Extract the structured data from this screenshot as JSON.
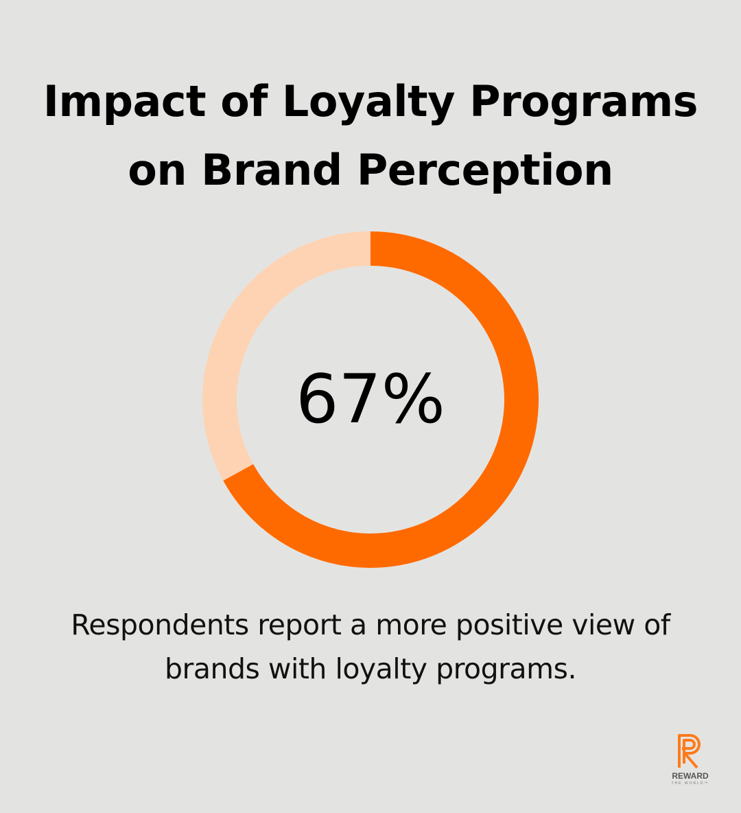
{
  "title_line1": "Impact of Loyalty Programs",
  "title_line2": "on Brand Perception",
  "caption_line1": "Respondents report a more positive view of",
  "caption_line2": "brands with loyalty programs.",
  "logo": {
    "name": "REWARD",
    "tagline": "THE WORLD™",
    "icon": "reward-r-icon"
  },
  "colors": {
    "background": "#e3e4e2",
    "value_arc": "#ff6a00",
    "remainder_arc": "#fdd3b3",
    "text": "#000000"
  },
  "chart_data": {
    "type": "pie",
    "variant": "donut",
    "value": 67,
    "max": 100,
    "center_label": "67%",
    "title": "Impact of Loyalty Programs on Brand Perception",
    "description": "Respondents report a more positive view of brands with loyalty programs."
  }
}
